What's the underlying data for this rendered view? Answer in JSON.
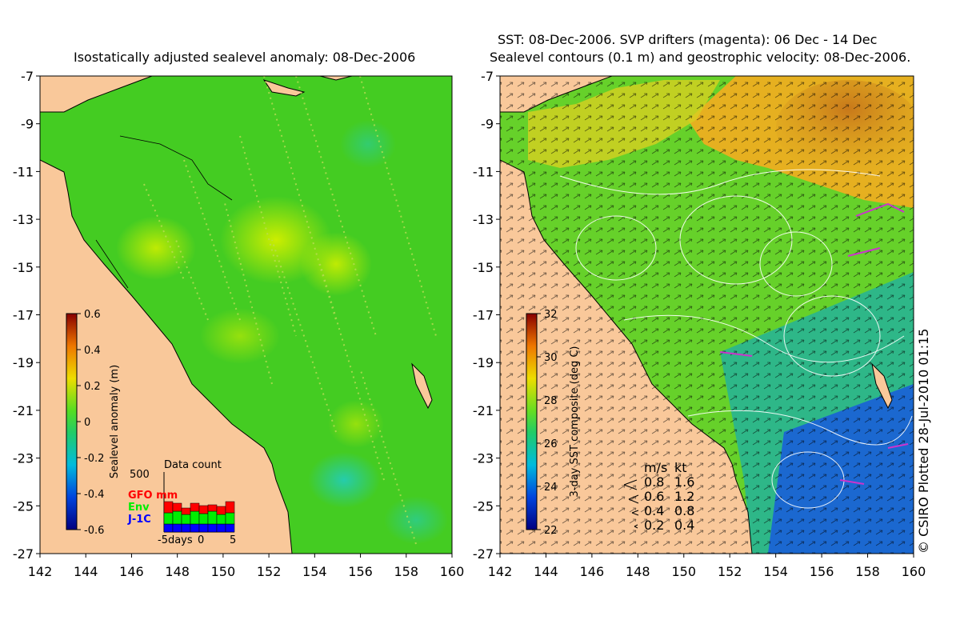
{
  "left_map": {
    "title": "Isostatically adjusted sealevel anomaly: 08-Dec-2006",
    "colorbar": {
      "label": "Sealevel anomaly (m)",
      "ticks": [
        "0.6",
        "0.4",
        "0.2",
        "0",
        "-0.2",
        "-0.4",
        "-0.6"
      ],
      "range": [
        -0.6,
        0.6
      ]
    },
    "data_count": {
      "title": "Data count",
      "max_label": "500",
      "x_ticks": [
        "-5days",
        "0",
        "5"
      ],
      "legend": [
        {
          "label": "GFO mm",
          "color": "#ff0000"
        },
        {
          "label": "Env",
          "color": "#00ee00"
        },
        {
          "label": "J-1C",
          "color": "#0000ff"
        }
      ],
      "bars": [
        {
          "j1c": 10,
          "env": 14,
          "gfo": 14
        },
        {
          "j1c": 10,
          "env": 16,
          "gfo": 10
        },
        {
          "j1c": 10,
          "env": 12,
          "gfo": 8
        },
        {
          "j1c": 10,
          "env": 16,
          "gfo": 10
        },
        {
          "j1c": 10,
          "env": 13,
          "gfo": 10
        },
        {
          "j1c": 10,
          "env": 16,
          "gfo": 8
        },
        {
          "j1c": 10,
          "env": 12,
          "gfo": 10
        },
        {
          "j1c": 10,
          "env": 14,
          "gfo": 14
        }
      ]
    }
  },
  "right_map": {
    "title_line1": "SST: 08-Dec-2006. SVP drifters (magenta): 06 Dec - 14 Dec",
    "title_line2": "Sealevel contours (0.1 m) and geostrophic velocity: 08-Dec-2006.",
    "colorbar": {
      "label": "3-day SST composite (deg C)",
      "ticks": [
        "32",
        "30",
        "28",
        "26",
        "24",
        "22"
      ],
      "range": [
        22,
        32
      ]
    },
    "velocity_legend": {
      "header_ms": "m/s",
      "header_kt": "kt",
      "rows": [
        {
          "ms": "0.8",
          "kt": "1.6"
        },
        {
          "ms": "0.6",
          "kt": "1.2"
        },
        {
          "ms": "0.4",
          "kt": "0.8"
        },
        {
          "ms": "0.2",
          "kt": "0.4"
        }
      ]
    },
    "credit": "© CSIRO Plotted 28-Jul-2010 01:15"
  },
  "axes": {
    "y_ticks": [
      "-7",
      "-9",
      "-11",
      "-13",
      "-15",
      "-17",
      "-19",
      "-21",
      "-23",
      "-25",
      "-27"
    ],
    "x_ticks": [
      "142",
      "144",
      "146",
      "148",
      "150",
      "152",
      "154",
      "156",
      "158",
      "160"
    ],
    "lat_range": [
      -27,
      -7
    ],
    "lon_range": [
      142,
      160
    ]
  },
  "colors": {
    "land": "#f9c89a",
    "sea_green": "#44cc22",
    "sst_warm": "#e0a020",
    "sst_cool": "#1a5fd8",
    "drifters": "#cc33cc"
  }
}
